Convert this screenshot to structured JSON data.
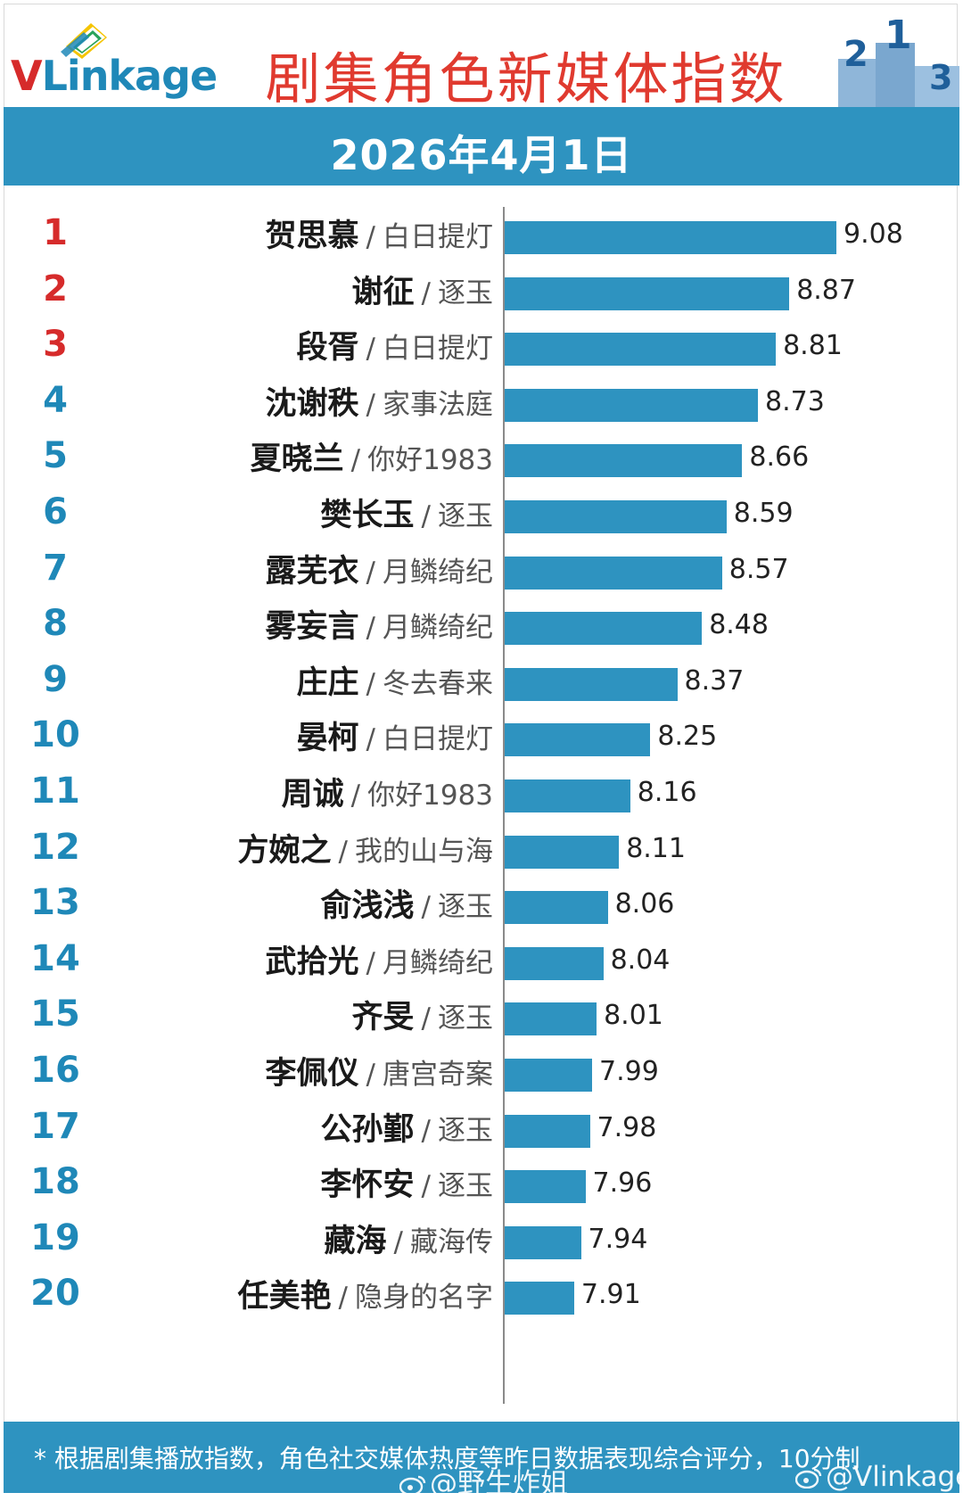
{
  "header": {
    "logo_v": "V",
    "logo_rest": "Linkage",
    "title": "剧集角色新媒体指数",
    "date": "2026年4月1日",
    "podium_numbers": [
      "2",
      "1",
      "3"
    ]
  },
  "colors": {
    "accent": "#2e93c0",
    "title_red": "#e03a2f",
    "rank_red": "#d62b2b",
    "rank_blue": "#1f88b8"
  },
  "chart_data": {
    "type": "bar",
    "orientation": "horizontal",
    "categories": [
      "贺思慕 / 白日提灯",
      "谢征 / 逐玉",
      "段胥 / 白日提灯",
      "沈谢秩 / 家事法庭",
      "夏晓兰 / 你好1983",
      "樊长玉 / 逐玉",
      "露芜衣 / 月鳞绮纪",
      "雾妄言 / 月鳞绮纪",
      "庄庄 / 冬去春来",
      "晏柯 / 白日提灯",
      "周诚 / 你好1983",
      "方婉之 / 我的山与海",
      "俞浅浅 / 逐玉",
      "武拾光 / 月鳞绮纪",
      "齐旻 / 逐玉",
      "李佩仪 / 唐宫奇案",
      "公孙鄞 / 逐玉",
      "李怀安 / 逐玉",
      "藏海 / 藏海传",
      "任美艳 / 隐身的名字"
    ],
    "values": [
      9.08,
      8.87,
      8.81,
      8.73,
      8.66,
      8.59,
      8.57,
      8.48,
      8.37,
      8.25,
      8.16,
      8.11,
      8.06,
      8.04,
      8.01,
      7.99,
      7.98,
      7.96,
      7.94,
      7.91
    ],
    "value_labels": [
      "9.08",
      "8.87",
      "8.81",
      "8.73",
      "8.66",
      "8.59",
      "8.57",
      "8.48",
      "8.37",
      "8.25",
      "8.16",
      "8.11",
      "8.06",
      "8.04",
      "8.01",
      "7.99",
      "7.98",
      "7.96",
      "7.94",
      "7.91"
    ],
    "ranks": [
      "1",
      "2",
      "3",
      "4",
      "5",
      "6",
      "7",
      "8",
      "9",
      "10",
      "11",
      "12",
      "13",
      "14",
      "15",
      "16",
      "17",
      "18",
      "19",
      "20"
    ],
    "rows": [
      {
        "rank": "1",
        "name": "贺思慕",
        "show": "白日提灯",
        "value": 9.08
      },
      {
        "rank": "2",
        "name": "谢征",
        "show": "逐玉",
        "value": 8.87
      },
      {
        "rank": "3",
        "name": "段胥",
        "show": "白日提灯",
        "value": 8.81
      },
      {
        "rank": "4",
        "name": "沈谢秩",
        "show": "家事法庭",
        "value": 8.73
      },
      {
        "rank": "5",
        "name": "夏晓兰",
        "show": "你好1983",
        "value": 8.66
      },
      {
        "rank": "6",
        "name": "樊长玉",
        "show": "逐玉",
        "value": 8.59
      },
      {
        "rank": "7",
        "name": "露芜衣",
        "show": "月鳞绮纪",
        "value": 8.57
      },
      {
        "rank": "8",
        "name": "雾妄言",
        "show": "月鳞绮纪",
        "value": 8.48
      },
      {
        "rank": "9",
        "name": "庄庄",
        "show": "冬去春来",
        "value": 8.37
      },
      {
        "rank": "10",
        "name": "晏柯",
        "show": "白日提灯",
        "value": 8.25
      },
      {
        "rank": "11",
        "name": "周诚",
        "show": "你好1983",
        "value": 8.16
      },
      {
        "rank": "12",
        "name": "方婉之",
        "show": "我的山与海",
        "value": 8.11
      },
      {
        "rank": "13",
        "name": "俞浅浅",
        "show": "逐玉",
        "value": 8.06
      },
      {
        "rank": "14",
        "name": "武拾光",
        "show": "月鳞绮纪",
        "value": 8.04
      },
      {
        "rank": "15",
        "name": "齐旻",
        "show": "逐玉",
        "value": 8.01
      },
      {
        "rank": "16",
        "name": "李佩仪",
        "show": "唐宫奇案",
        "value": 7.99
      },
      {
        "rank": "17",
        "name": "公孙鄞",
        "show": "逐玉",
        "value": 7.98
      },
      {
        "rank": "18",
        "name": "李怀安",
        "show": "逐玉",
        "value": 7.96
      },
      {
        "rank": "19",
        "name": "藏海",
        "show": "藏海传",
        "value": 7.94
      },
      {
        "rank": "20",
        "name": "任美艳",
        "show": "隐身的名字",
        "value": 7.91
      }
    ],
    "title": "剧集角色新媒体指数",
    "subtitle": "2026年4月1日",
    "xlim": [
      7.6,
      9.08
    ],
    "grid": false
  },
  "footer": {
    "note": "* 根据剧集播放指数，角色社交媒体热度等昨日数据表现综合评分，10分制",
    "watermark_1": "@野生炸姐",
    "watermark_2": "@Vlinkage"
  }
}
